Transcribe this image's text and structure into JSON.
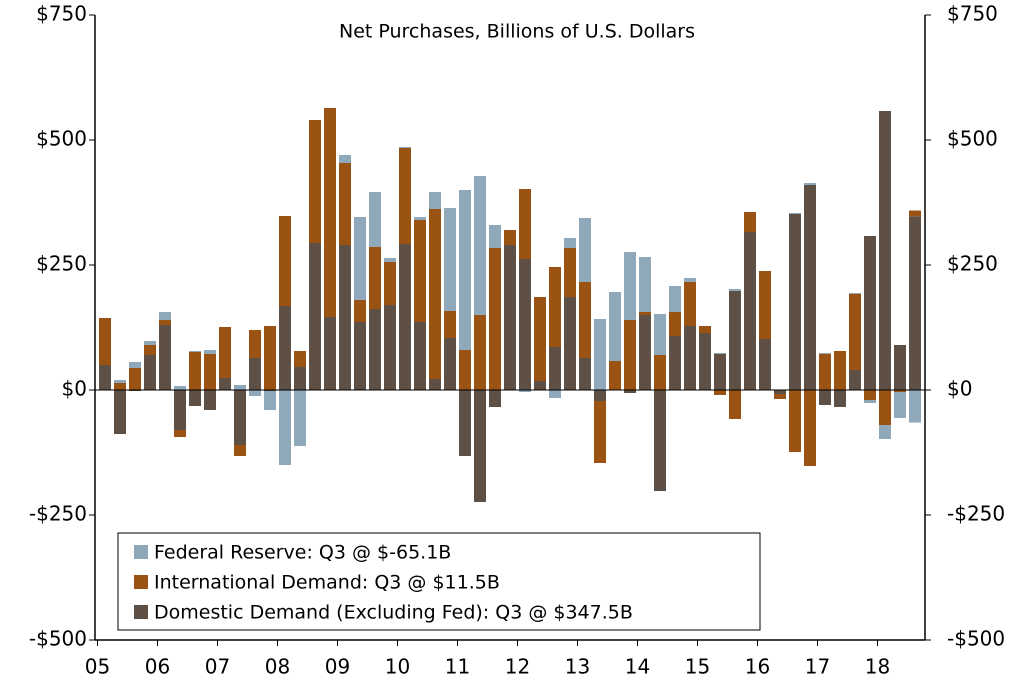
{
  "chart_data": {
    "type": "stacked_bar",
    "title": "Net Purchases, Billions of U.S. Dollars",
    "categories": [
      "05",
      null,
      null,
      null,
      "06",
      null,
      null,
      null,
      "07",
      null,
      null,
      null,
      "08",
      null,
      null,
      null,
      "09",
      null,
      null,
      null,
      "10",
      null,
      null,
      null,
      "11",
      null,
      null,
      null,
      "12",
      null,
      null,
      null,
      "13",
      null,
      null,
      null,
      "14",
      null,
      null,
      null,
      "15",
      null,
      null,
      null,
      "16",
      null,
      null,
      null,
      "17",
      null,
      null,
      null,
      "18",
      null,
      null
    ],
    "series": [
      {
        "name": "Federal Reserve: Q3 @ $-65.1B",
        "color": "#8fa9bb",
        "values": [
          0,
          6,
          12,
          8,
          16,
          8,
          2,
          8,
          0,
          10,
          -12,
          -38,
          -150,
          -112,
          0,
          0,
          16,
          166,
          110,
          8,
          2,
          6,
          34,
          206,
          320,
          278,
          46,
          0,
          -4,
          0,
          -16,
          20,
          128,
          142,
          138,
          136,
          110,
          82,
          52,
          8,
          0,
          2,
          4,
          0,
          0,
          0,
          2,
          4,
          2,
          0,
          2,
          -6,
          -28,
          -52,
          -65.1
        ]
      },
      {
        "name": "International Demand: Q3 @ $11.5B",
        "color": "#9a5313",
        "values": [
          94,
          14,
          44,
          20,
          10,
          -14,
          76,
          72,
          102,
          -22,
          56,
          128,
          180,
          32,
          246,
          418,
          164,
          44,
          124,
          86,
          192,
          204,
          340,
          54,
          80,
          150,
          284,
          30,
          140,
          168,
          160,
          98,
          152,
          -124,
          58,
          140,
          6,
          70,
          48,
          88,
          14,
          -10,
          -58,
          40,
          136,
          -10,
          -124,
          -152,
          72,
          78,
          152,
          -20,
          -70,
          -4,
          11.5
        ]
      },
      {
        "name": "Domestic Demand (Excluding Fed): Q3 @ $347.5B",
        "color": "#5e5045",
        "values": [
          50,
          -88,
          -2,
          70,
          130,
          -80,
          -32,
          -40,
          24,
          -110,
          64,
          -2,
          168,
          46,
          294,
          146,
          290,
          136,
          162,
          170,
          292,
          136,
          22,
          104,
          -132,
          -224,
          -34,
          290,
          262,
          18,
          86,
          186,
          64,
          -22,
          0,
          -6,
          150,
          -202,
          108,
          128,
          114,
          72,
          198,
          316,
          102,
          -8,
          352,
          410,
          -30,
          -34,
          40,
          308,
          558,
          90,
          347.5
        ]
      }
    ],
    "ylim": [
      -500,
      750
    ],
    "yticks": [
      {
        "value": -500,
        "label": "-$500"
      },
      {
        "value": -250,
        "label": "-$250"
      },
      {
        "value": 0,
        "label": "$0"
      },
      {
        "value": 250,
        "label": "$250"
      },
      {
        "value": 500,
        "label": "$500"
      },
      {
        "value": 750,
        "label": "$750"
      }
    ],
    "y2lim": [
      -500,
      750
    ],
    "y2ticks": [
      {
        "value": -500,
        "label": "-$500"
      },
      {
        "value": -250,
        "label": "-$250"
      },
      {
        "value": 0,
        "label": "$0"
      },
      {
        "value": 250,
        "label": "$250"
      },
      {
        "value": 500,
        "label": "$500"
      },
      {
        "value": 750,
        "label": "$750"
      }
    ]
  }
}
